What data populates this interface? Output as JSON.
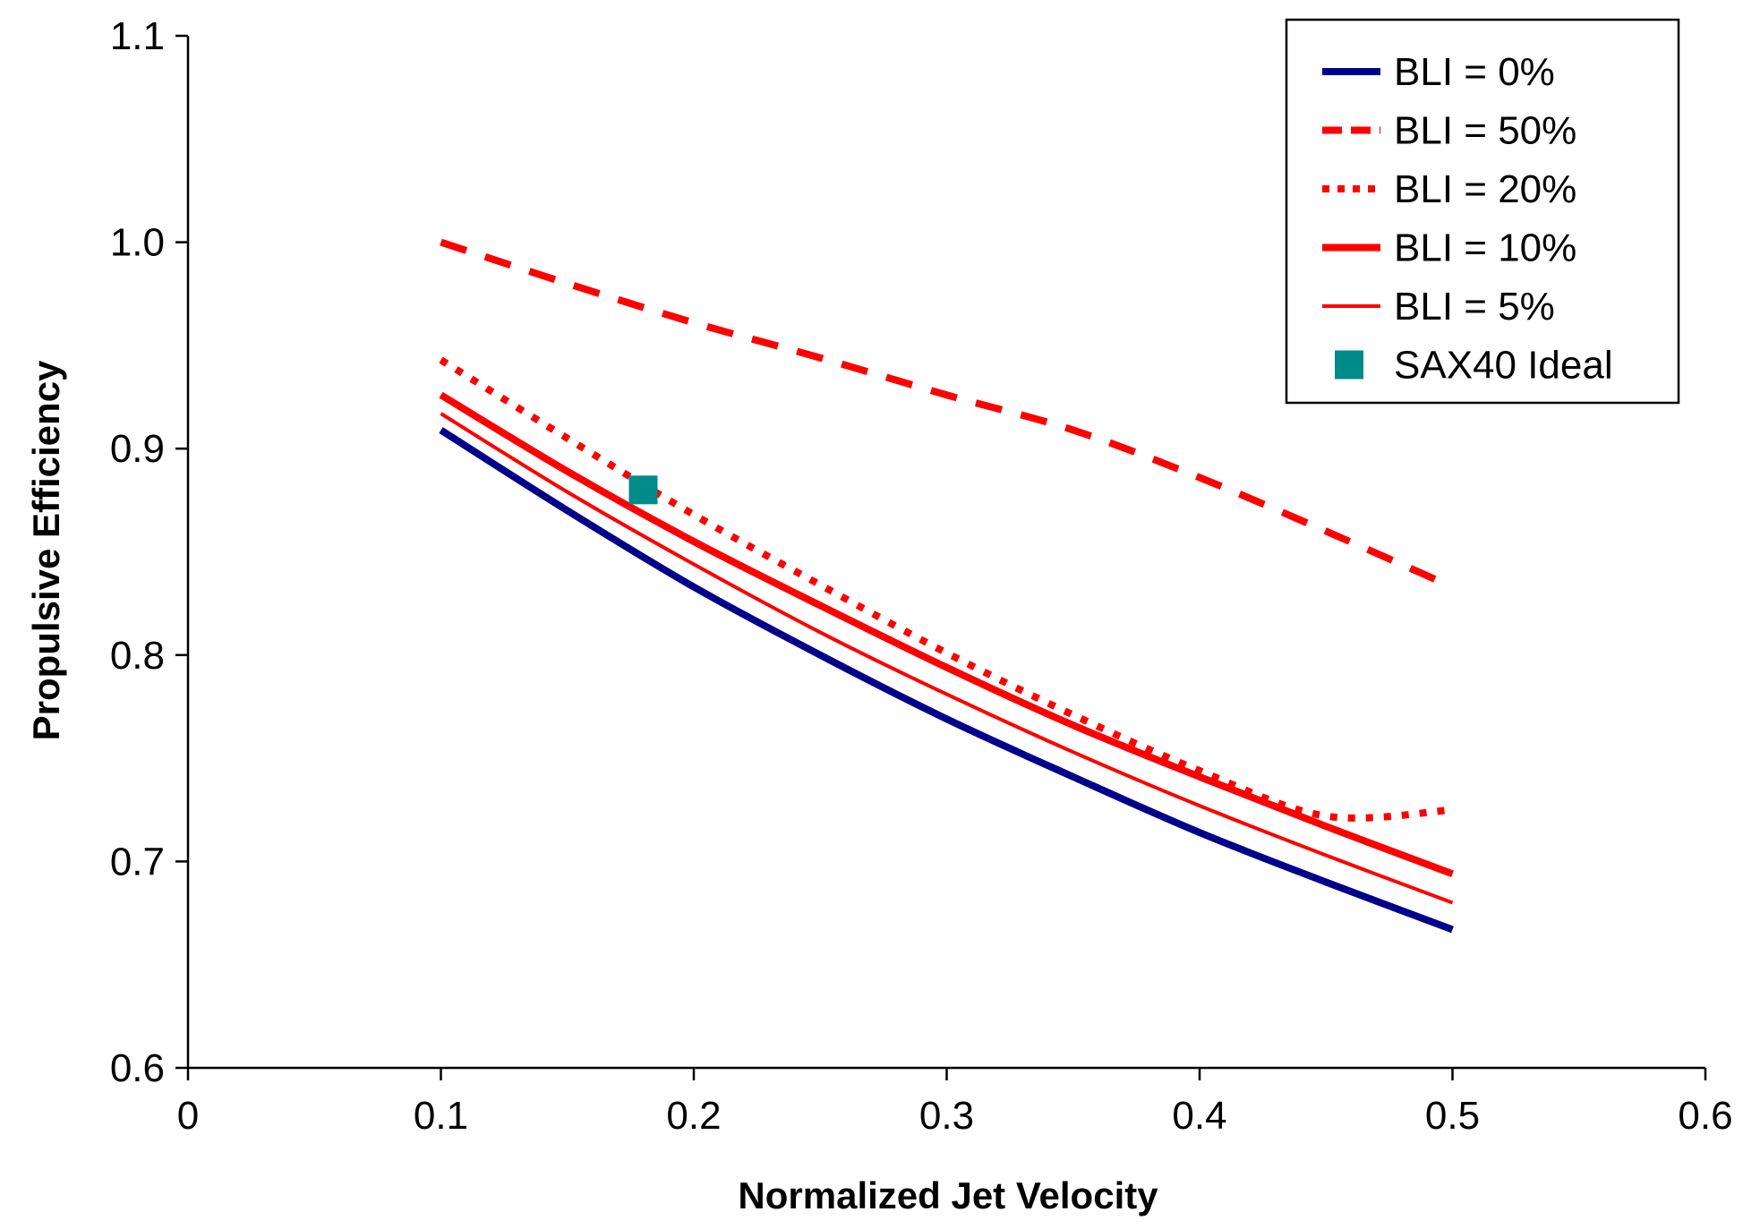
{
  "chart_data": {
    "type": "line",
    "title": "",
    "xlabel": "Normalized Jet Velocity",
    "ylabel": "Propulsive Efficiency",
    "xlim": [
      0,
      0.6
    ],
    "ylim": [
      0.6,
      1.1
    ],
    "x_ticks": [
      0,
      0.1,
      0.2,
      0.3,
      0.4,
      0.5,
      0.6
    ],
    "x_tick_labels": [
      "0",
      "0.1",
      "0.2",
      "0.3",
      "0.4",
      "0.5",
      "0.6"
    ],
    "y_ticks": [
      0.6,
      0.7,
      0.8,
      0.9,
      1.0,
      1.1
    ],
    "y_tick_labels": [
      "0.6",
      "0.7",
      "0.8",
      "0.9",
      "1.0",
      "1.1"
    ],
    "grid": false,
    "legend_position": "top-right",
    "series": [
      {
        "name": "BLI = 0%",
        "color": "#00008B",
        "style": "solid-thick",
        "x": [
          0.1,
          0.15,
          0.2,
          0.25,
          0.3,
          0.35,
          0.4,
          0.45,
          0.5
        ],
        "y": [
          0.909,
          0.87,
          0.833,
          0.8,
          0.769,
          0.741,
          0.714,
          0.69,
          0.667
        ]
      },
      {
        "name": "BLI = 50%",
        "color": "#FF0000",
        "style": "dashed",
        "x": [
          0.1,
          0.15,
          0.2,
          0.25,
          0.3,
          0.35,
          0.4,
          0.45,
          0.5
        ],
        "y": [
          1.0,
          0.98,
          0.961,
          0.944,
          0.926,
          0.909,
          0.886,
          0.86,
          0.833
        ]
      },
      {
        "name": "BLI = 20%",
        "color": "#FF0000",
        "style": "dotted",
        "x": [
          0.1,
          0.15,
          0.2,
          0.25,
          0.3,
          0.35,
          0.4,
          0.45,
          0.5
        ],
        "y": [
          0.943,
          0.905,
          0.868,
          0.834,
          0.801,
          0.771,
          0.744,
          0.722,
          0.725
        ]
      },
      {
        "name": "BLI = 10%",
        "color": "#FF0000",
        "style": "solid-thick",
        "x": [
          0.1,
          0.15,
          0.2,
          0.25,
          0.3,
          0.35,
          0.4,
          0.45,
          0.5
        ],
        "y": [
          0.926,
          0.889,
          0.855,
          0.824,
          0.794,
          0.766,
          0.741,
          0.717,
          0.694
        ]
      },
      {
        "name": "BLI = 5%",
        "color": "#FF0000",
        "style": "solid-thin",
        "x": [
          0.1,
          0.15,
          0.2,
          0.25,
          0.3,
          0.35,
          0.4,
          0.45,
          0.5
        ],
        "y": [
          0.917,
          0.879,
          0.844,
          0.811,
          0.781,
          0.753,
          0.727,
          0.703,
          0.68
        ]
      }
    ],
    "markers": [
      {
        "name": "SAX40 Ideal",
        "color": "#008B8B",
        "shape": "square",
        "x": 0.18,
        "y": 0.88
      }
    ]
  }
}
